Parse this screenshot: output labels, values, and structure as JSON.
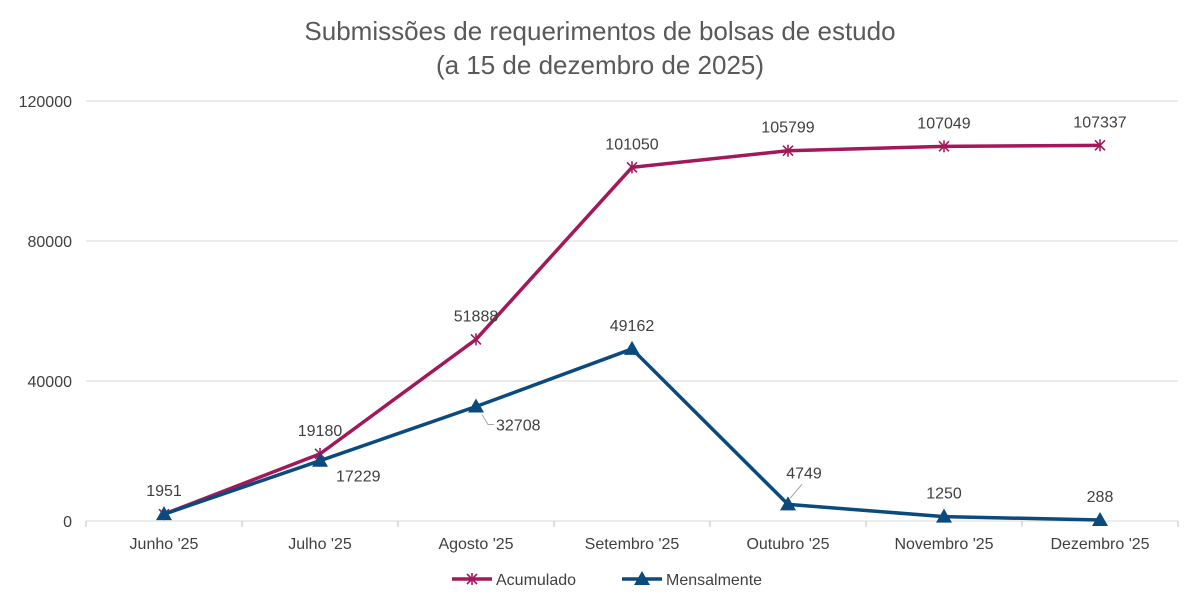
{
  "chart_data": {
    "type": "line",
    "title": "Submissões de requerimentos de bolsas de estudo",
    "subtitle": "(a 15 de dezembro de 2025)",
    "categories": [
      "Junho '25",
      "Julho '25",
      "Agosto '25",
      "Setembro '25",
      "Outubro '25",
      "Novembro '25",
      "Dezembro '25"
    ],
    "yticks": [
      0,
      40000,
      80000,
      120000
    ],
    "ylim": [
      0,
      120000
    ],
    "grid": true,
    "legend": "bottom",
    "series": [
      {
        "name": "Acumulado",
        "color": "#a3185a",
        "marker": "asterisk",
        "values": [
          1951,
          19180,
          51888,
          101050,
          105799,
          107049,
          107337
        ],
        "labels": [
          "1951",
          "19180",
          "51888",
          "101050",
          "105799",
          "107049",
          "107337"
        ]
      },
      {
        "name": "Mensalmente",
        "color": "#0b4a7d",
        "marker": "triangle",
        "values": [
          1951,
          17229,
          32708,
          49162,
          4749,
          1250,
          288
        ],
        "labels": [
          "1951",
          "17229",
          "32708",
          "49162",
          "4749",
          "1250",
          "288"
        ]
      }
    ]
  }
}
